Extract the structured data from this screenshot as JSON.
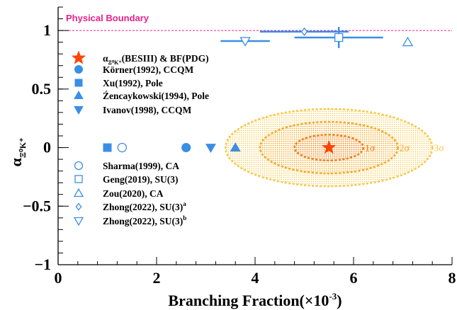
{
  "chart_data": {
    "type": "scatter",
    "xlabel": "Branching Fraction(×10",
    "xlabel_sup": "-3",
    "xlabel_close": ")",
    "ylabel": "α",
    "ylabel_sub": "Ξ⁰K⁺",
    "xlim": [
      0,
      8
    ],
    "ylim": [
      -1,
      1.2
    ],
    "x_ticks": [
      "0",
      "2",
      "4",
      "6",
      "8"
    ],
    "y_ticks": [
      "−1",
      "−0.5",
      "0",
      "0.5",
      "1"
    ],
    "physical_boundary": {
      "y": 1,
      "label": "Physical Boundary",
      "color": "#e8228a"
    },
    "measurement": {
      "name": "α(BESIII) & BF(PDG)",
      "x": 5.5,
      "y": 0.0,
      "color": "#ff4400",
      "contours": [
        {
          "label": "1σ",
          "rx": 0.7,
          "ry": 0.11,
          "color": "#f07a18"
        },
        {
          "label": "2σ",
          "rx": 1.4,
          "ry": 0.22,
          "color": "#f5a623"
        },
        {
          "label": "3σ",
          "rx": 2.1,
          "ry": 0.33,
          "color": "#f7c748"
        }
      ]
    },
    "series": [
      {
        "name": "Körner(1992), CCQM",
        "marker": "circle-filled",
        "x": 2.6,
        "y": 0.0
      },
      {
        "name": "Xu(1992), Pole",
        "marker": "square-filled",
        "x": 1.0,
        "y": 0.0
      },
      {
        "name": "Źencaykowski(1994), Pole",
        "marker": "triangle-up-filled",
        "x": 3.6,
        "y": 0.0
      },
      {
        "name": "Ivanov(1998), CCQM",
        "marker": "triangle-down-filled",
        "x": 3.1,
        "y": 0.0
      },
      {
        "name": "Sharma(1999), CA",
        "marker": "circle-open",
        "x": 1.3,
        "y": 0.0
      },
      {
        "name": "Geng(2019), SU(3)",
        "marker": "square-open",
        "x": 5.7,
        "y": 0.94,
        "xerr": 0.9,
        "yerr": 0.09
      },
      {
        "name": "Zou(2020), CA",
        "marker": "triangle-up-open",
        "x": 7.1,
        "y": 0.9
      },
      {
        "name": "Zhong(2022), SU(3)",
        "sup": "a",
        "marker": "diamond-open",
        "x": 5.0,
        "y": 0.99,
        "xerr": 0.9,
        "yerr": 0.0
      },
      {
        "name": "Zhong(2022), SU(3)",
        "sup": "b",
        "marker": "triangle-down-open",
        "x": 3.8,
        "y": 0.91,
        "xerr": 0.5,
        "yerr": 0.03
      }
    ],
    "marker_color": "#3a8ee6",
    "grid": false,
    "legend_position": "left"
  },
  "legend": {
    "star_label_pre": "α",
    "star_label_sub": "Ξ⁰K⁺",
    "star_label_post": "(BESIII) & BF(PDG)"
  }
}
